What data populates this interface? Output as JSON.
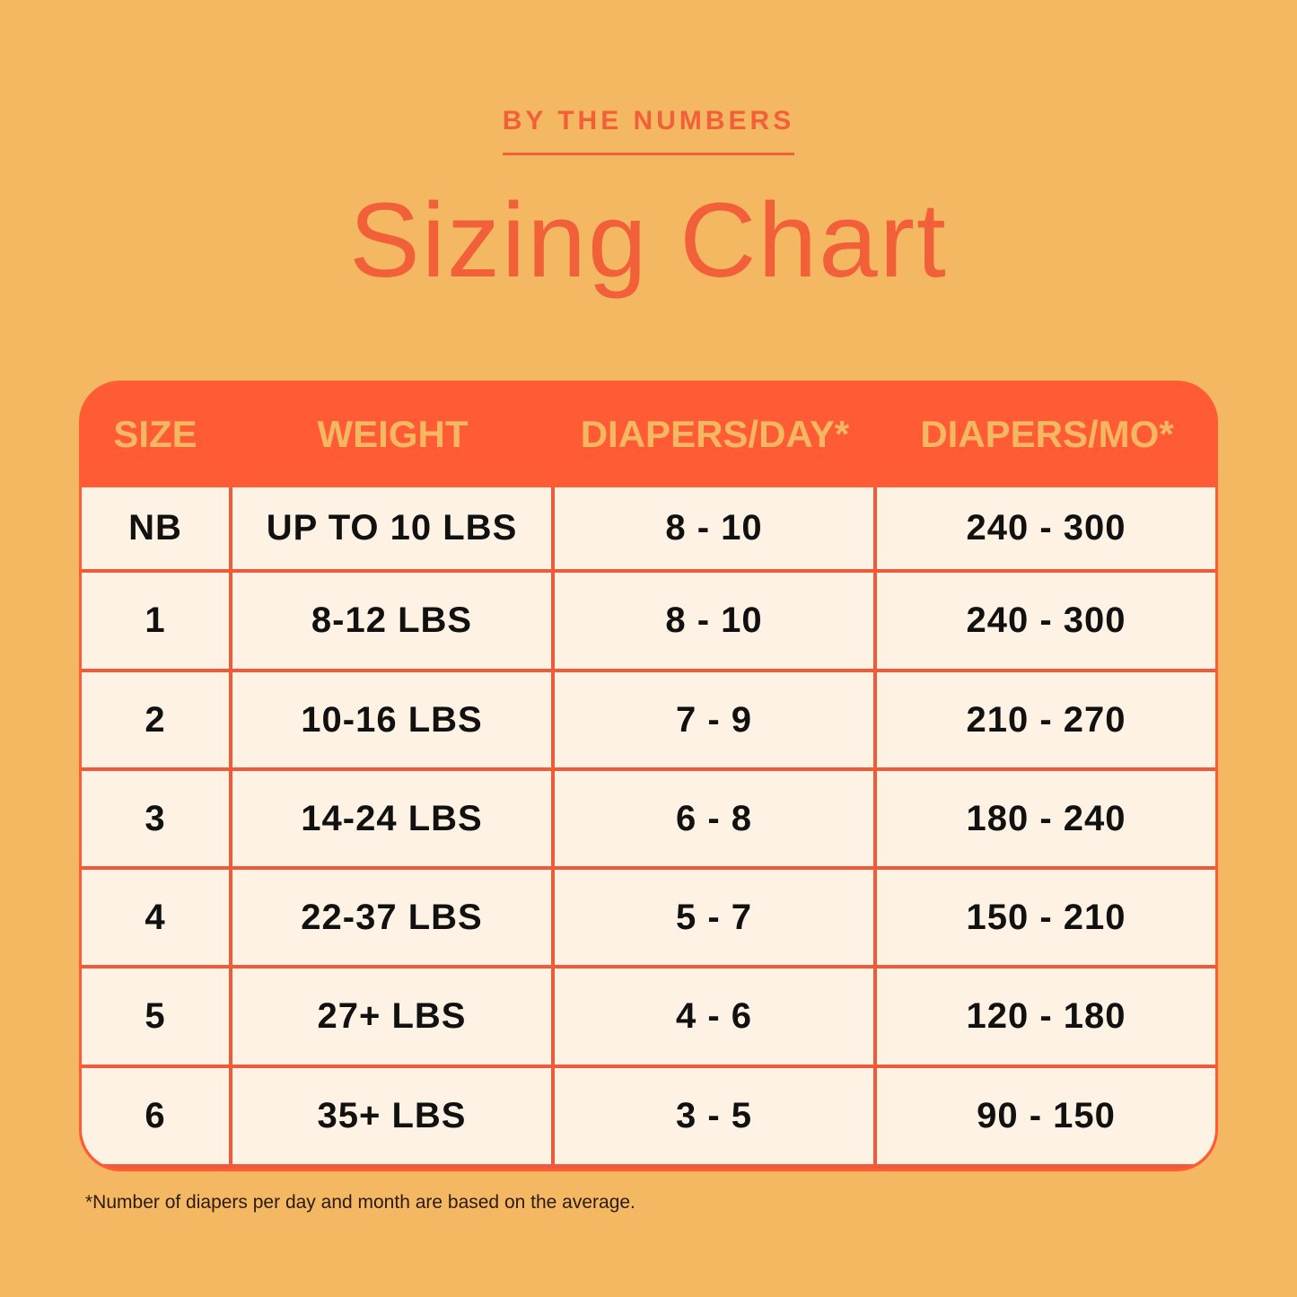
{
  "eyebrow": "BY THE NUMBERS",
  "title": "Sizing Chart",
  "colors": {
    "background": "#F5B862",
    "accent": "#FF5C35",
    "cell": "#FDF2E3"
  },
  "table": {
    "headers": [
      "SIZE",
      "WEIGHT",
      "DIAPERS/DAY*",
      "DIAPERS/MO*"
    ],
    "rows": [
      [
        "NB",
        "UP TO 10 LBS",
        "8 - 10",
        "240 - 300"
      ],
      [
        "1",
        "8-12 LBS",
        "8 - 10",
        "240 - 300"
      ],
      [
        "2",
        "10-16 LBS",
        "7 - 9",
        "210 - 270"
      ],
      [
        "3",
        "14-24 LBS",
        "6 - 8",
        "180 - 240"
      ],
      [
        "4",
        "22-37 LBS",
        "5 - 7",
        "150 - 210"
      ],
      [
        "5",
        "27+ LBS",
        "4 - 6",
        "120 - 180"
      ],
      [
        "6",
        "35+ LBS",
        "3 - 5",
        "90 - 150"
      ]
    ]
  },
  "footnote": "*Number of diapers per day and month are based on the average."
}
